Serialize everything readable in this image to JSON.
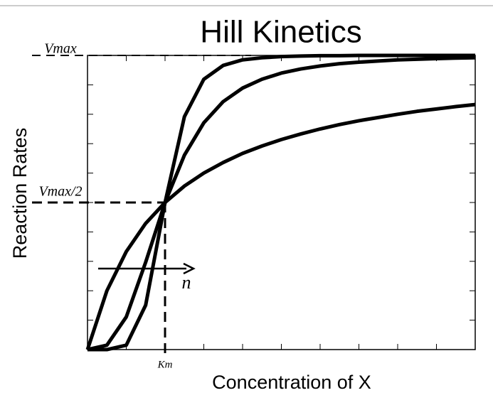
{
  "chart_data": {
    "type": "line",
    "title": "Hill Kinetics",
    "xlabel": "Concentration of X",
    "ylabel": "Reaction Rates",
    "annotation": "n",
    "x": [
      0,
      0.5,
      1,
      1.5,
      2,
      2.5,
      3,
      3.5,
      4,
      4.5,
      5,
      5.5,
      6,
      6.5,
      7,
      7.5,
      8,
      8.5,
      9,
      9.5,
      10
    ],
    "series": [
      {
        "color": "#000000",
        "values": [
          0,
          0.2,
          0.333,
          0.429,
          0.5,
          0.556,
          0.6,
          0.636,
          0.667,
          0.692,
          0.714,
          0.733,
          0.75,
          0.765,
          0.778,
          0.789,
          0.8,
          0.81,
          0.818,
          0.826,
          0.833
        ]
      },
      {
        "color": "#000000",
        "values": [
          0,
          0.015,
          0.111,
          0.297,
          0.5,
          0.661,
          0.771,
          0.843,
          0.889,
          0.919,
          0.94,
          0.954,
          0.964,
          0.972,
          0.977,
          0.981,
          0.985,
          0.987,
          0.989,
          0.991,
          0.992
        ]
      },
      {
        "color": "#000000",
        "values": [
          0,
          0,
          0.015,
          0.151,
          0.5,
          0.792,
          0.919,
          0.966,
          0.985,
          0.992,
          0.996,
          0.998,
          0.999,
          0.999,
          1,
          1,
          1,
          1,
          1,
          1,
          1
        ]
      }
    ],
    "xlim": [
      0,
      10
    ],
    "ylim": [
      0,
      1
    ],
    "xticks": [
      {
        "value": 2,
        "label": "Km"
      }
    ],
    "yticks": [
      {
        "value": 0.5,
        "label": "Vmax/2"
      },
      {
        "value": 1,
        "label": "Vmax"
      }
    ],
    "xticks_minor": [
      1,
      2,
      3,
      4,
      5,
      6,
      7,
      8,
      9
    ],
    "yticks_minor": [
      0.1,
      0.2,
      0.3,
      0.4,
      0.5,
      0.6,
      0.7,
      0.8,
      0.9
    ]
  }
}
